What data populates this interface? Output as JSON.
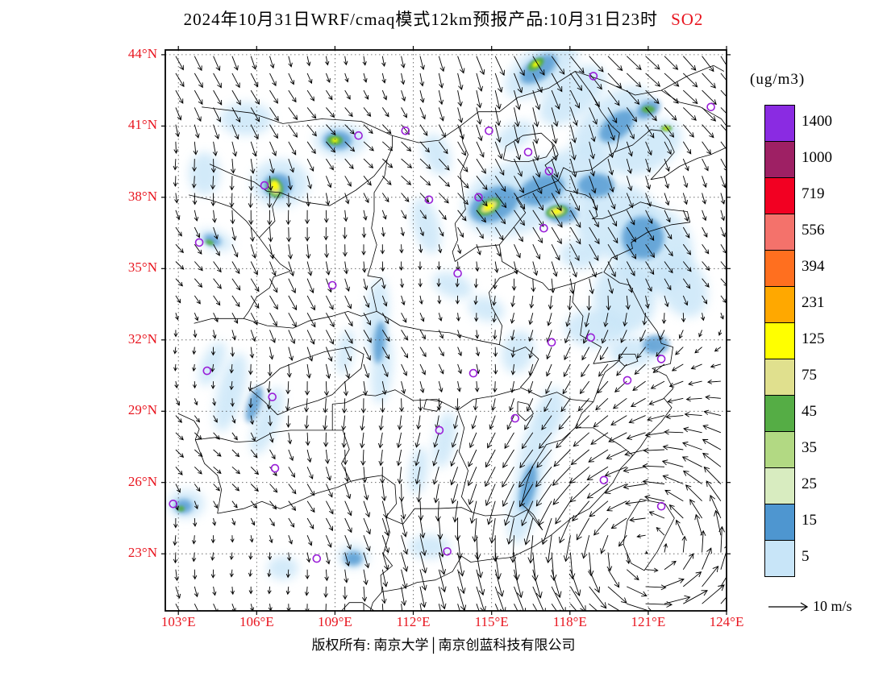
{
  "header": {
    "title_main": "2024年10月31日WRF/cmaq模式12km预报产品:10月31日23时",
    "title_species": "SO2"
  },
  "footer": {
    "copyright": "版权所有: 南京大学│南京创蓝科技有限公司"
  },
  "colors": {
    "axis_label_red": "#e8141e",
    "city_marker_purple": "#9a1fd8",
    "boundary_black": "#000000"
  },
  "chart_data": {
    "type": "heatmap",
    "title": "2024年10月31日WRF/cmaq模式12km预报产品:10月31日23时 SO2",
    "species": "SO2",
    "x_axis": {
      "range": [
        102.5,
        124.0
      ],
      "ticks": [
        103,
        106,
        109,
        112,
        115,
        118,
        121,
        124
      ]
    },
    "y_axis": {
      "range": [
        20.6,
        44.2
      ],
      "ticks": [
        44,
        41,
        38,
        35,
        32,
        29,
        26,
        23
      ]
    },
    "x_tick_labels": [
      "103°E",
      "106°E",
      "109°E",
      "112°E",
      "115°E",
      "118°E",
      "121°E",
      "124°E"
    ],
    "y_tick_labels": [
      "44°N",
      "41°N",
      "38°N",
      "35°N",
      "32°N",
      "29°N",
      "26°N",
      "23°N"
    ],
    "grid": "dotted",
    "legend": {
      "unit": "(ug/m3)",
      "levels_top_down": [
        1400,
        1000,
        719,
        556,
        394,
        231,
        125,
        75,
        45,
        35,
        25,
        15,
        5
      ],
      "colors_top_down": [
        "#8a2be2",
        "#9e2064",
        "#f20022",
        "#f4726b",
        "#ff6f1f",
        "#ffa800",
        "#ffff00",
        "#e0e08e",
        "#55ad45",
        "#b2d983",
        "#d8ecc0",
        "#4e96d0",
        "#c8e5f8"
      ]
    },
    "wind_reference": {
      "speed_label": "10 m/s",
      "speed_value": 10
    },
    "wind_field": {
      "pattern": "northerly flow over land, strong cyclonic circulation offshore southeast",
      "cyclone_center_lonlat": [
        120.8,
        23.2
      ]
    },
    "cities_lonlat": [
      [
        111.7,
        40.8
      ],
      [
        116.4,
        39.9
      ],
      [
        117.2,
        39.1
      ],
      [
        114.5,
        38.0
      ],
      [
        112.6,
        37.9
      ],
      [
        106.3,
        38.5
      ],
      [
        103.8,
        36.1
      ],
      [
        108.9,
        34.3
      ],
      [
        113.7,
        34.8
      ],
      [
        117.0,
        36.7
      ],
      [
        117.3,
        31.9
      ],
      [
        118.8,
        32.1
      ],
      [
        121.5,
        31.2
      ],
      [
        120.2,
        30.3
      ],
      [
        114.3,
        30.6
      ],
      [
        106.6,
        29.6
      ],
      [
        104.1,
        30.7
      ],
      [
        113.0,
        28.2
      ],
      [
        115.9,
        28.7
      ],
      [
        106.7,
        26.6
      ],
      [
        119.3,
        26.1
      ],
      [
        113.3,
        23.1
      ],
      [
        123.4,
        41.8
      ],
      [
        114.9,
        40.8
      ],
      [
        118.9,
        43.1
      ],
      [
        109.9,
        40.6
      ],
      [
        102.8,
        25.1
      ],
      [
        108.3,
        22.8
      ],
      [
        121.5,
        25.0
      ]
    ],
    "so2_plumes": [
      [
        116.9,
        43.4,
        1.6,
        0.9,
        -35,
        5
      ],
      [
        118.1,
        42.3,
        1.5,
        0.9,
        -40,
        5
      ],
      [
        119.6,
        41.2,
        1.8,
        1.0,
        -40,
        5
      ],
      [
        120.9,
        40.1,
        1.5,
        1.0,
        -30,
        5
      ],
      [
        116.0,
        38.0,
        2.2,
        1.5,
        -20,
        5
      ],
      [
        118.0,
        38.8,
        1.8,
        1.2,
        -25,
        5
      ],
      [
        119.8,
        37.0,
        1.6,
        1.6,
        0,
        5
      ],
      [
        121.2,
        35.8,
        1.5,
        1.8,
        -15,
        5
      ],
      [
        120.1,
        33.8,
        1.2,
        1.5,
        -10,
        5
      ],
      [
        122.3,
        34.3,
        0.9,
        1.4,
        -25,
        5
      ],
      [
        112.5,
        36.8,
        0.5,
        1.2,
        -15,
        5
      ],
      [
        112.9,
        39.8,
        0.5,
        0.9,
        -20,
        5
      ],
      [
        115.9,
        40.6,
        0.8,
        0.5,
        -30,
        5
      ],
      [
        118.4,
        35.6,
        0.8,
        0.6,
        0,
        5
      ],
      [
        106.9,
        38.6,
        1.1,
        1.0,
        0,
        5
      ],
      [
        109.2,
        40.4,
        1.0,
        0.7,
        0,
        5
      ],
      [
        104.4,
        36.2,
        0.7,
        0.4,
        20,
        5
      ],
      [
        105.6,
        41.3,
        1.0,
        0.7,
        0,
        5
      ],
      [
        104.0,
        39.0,
        0.6,
        0.9,
        0,
        5
      ],
      [
        110.6,
        33.0,
        0.45,
        1.6,
        5,
        5
      ],
      [
        110.8,
        30.8,
        0.4,
        1.5,
        5,
        5
      ],
      [
        109.4,
        31.5,
        0.3,
        1.0,
        10,
        5
      ],
      [
        105.0,
        29.8,
        0.5,
        1.7,
        15,
        5
      ],
      [
        106.4,
        28.6,
        0.45,
        1.5,
        20,
        5
      ],
      [
        104.3,
        31.0,
        0.4,
        1.0,
        25,
        5
      ],
      [
        113.5,
        34.3,
        0.8,
        0.5,
        20,
        5
      ],
      [
        114.8,
        33.3,
        0.7,
        0.5,
        15,
        5
      ],
      [
        116.0,
        31.5,
        0.6,
        0.9,
        15,
        5
      ],
      [
        119.0,
        32.5,
        1.2,
        0.8,
        0,
        5
      ],
      [
        120.4,
        31.5,
        0.9,
        0.6,
        0,
        5
      ],
      [
        113.2,
        27.8,
        0.4,
        1.2,
        10,
        5
      ],
      [
        112.2,
        26.5,
        0.35,
        1.0,
        8,
        5
      ],
      [
        116.6,
        27.0,
        0.55,
        2.2,
        12,
        5
      ],
      [
        116.2,
        24.8,
        0.5,
        1.4,
        15,
        5
      ],
      [
        117.3,
        29.0,
        0.5,
        1.0,
        10,
        5
      ],
      [
        109.7,
        22.9,
        0.6,
        0.5,
        0,
        5
      ],
      [
        103.3,
        25.1,
        0.7,
        0.6,
        0,
        5
      ],
      [
        112.6,
        23.3,
        0.8,
        0.5,
        0,
        5
      ],
      [
        107.0,
        22.4,
        0.6,
        0.5,
        0,
        5
      ],
      [
        116.8,
        43.4,
        0.8,
        0.45,
        -35,
        15
      ],
      [
        119.8,
        41.0,
        0.8,
        0.5,
        -40,
        15
      ],
      [
        121.0,
        41.7,
        0.5,
        0.35,
        -30,
        15
      ],
      [
        115.1,
        37.7,
        1.0,
        0.7,
        -25,
        15
      ],
      [
        116.9,
        38.3,
        0.9,
        0.6,
        -20,
        15
      ],
      [
        119.0,
        38.5,
        0.7,
        0.5,
        0,
        15
      ],
      [
        120.8,
        36.3,
        0.8,
        0.9,
        -15,
        15
      ],
      [
        117.7,
        37.3,
        0.6,
        0.4,
        0,
        15
      ],
      [
        106.8,
        38.5,
        0.55,
        0.5,
        0,
        15
      ],
      [
        109.1,
        40.4,
        0.55,
        0.4,
        0,
        15
      ],
      [
        104.3,
        36.2,
        0.35,
        0.22,
        20,
        15
      ],
      [
        110.7,
        31.9,
        0.22,
        0.9,
        5,
        15
      ],
      [
        105.9,
        29.3,
        0.25,
        0.8,
        18,
        15
      ],
      [
        121.3,
        31.8,
        0.5,
        0.4,
        0,
        15
      ],
      [
        116.4,
        25.8,
        0.28,
        1.0,
        12,
        15
      ],
      [
        109.7,
        22.8,
        0.35,
        0.3,
        0,
        15
      ],
      [
        103.2,
        25.0,
        0.35,
        0.3,
        0,
        15
      ],
      [
        114.9,
        37.6,
        0.5,
        0.3,
        -30,
        45
      ],
      [
        117.5,
        37.4,
        0.42,
        0.25,
        -10,
        45
      ],
      [
        116.7,
        43.6,
        0.35,
        0.2,
        -35,
        45
      ],
      [
        121.0,
        41.7,
        0.25,
        0.15,
        0,
        45
      ],
      [
        121.7,
        40.9,
        0.22,
        0.12,
        0,
        45
      ],
      [
        106.7,
        38.4,
        0.3,
        0.42,
        -20,
        45
      ],
      [
        109.0,
        40.4,
        0.3,
        0.2,
        0,
        45
      ],
      [
        104.2,
        36.1,
        0.17,
        0.1,
        20,
        45
      ],
      [
        103.1,
        24.9,
        0.14,
        0.12,
        0,
        45
      ],
      [
        114.9,
        37.6,
        0.35,
        0.2,
        -30,
        75
      ],
      [
        117.5,
        37.4,
        0.3,
        0.17,
        -10,
        75
      ],
      [
        106.7,
        38.4,
        0.2,
        0.3,
        -20,
        75
      ],
      [
        114.9,
        37.6,
        0.2,
        0.12,
        -30,
        125
      ],
      [
        117.5,
        37.4,
        0.18,
        0.1,
        -10,
        125
      ],
      [
        116.7,
        43.6,
        0.16,
        0.1,
        -35,
        125
      ],
      [
        106.7,
        38.5,
        0.13,
        0.2,
        -20,
        125
      ],
      [
        109.0,
        40.4,
        0.13,
        0.09,
        0,
        125
      ],
      [
        121.7,
        40.9,
        0.1,
        0.06,
        0,
        125
      ]
    ]
  }
}
